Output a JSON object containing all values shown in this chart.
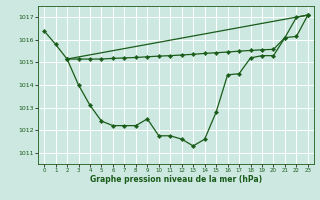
{
  "background_color": "#cce8e0",
  "grid_color": "#ffffff",
  "line_color": "#1a5c1a",
  "xlabel": "Graphe pression niveau de la mer (hPa)",
  "ylim": [
    1010.5,
    1017.5
  ],
  "xlim": [
    -0.5,
    23.5
  ],
  "yticks": [
    1011,
    1012,
    1013,
    1014,
    1015,
    1016,
    1017
  ],
  "xticks": [
    0,
    1,
    2,
    3,
    4,
    5,
    6,
    7,
    8,
    9,
    10,
    11,
    12,
    13,
    14,
    15,
    16,
    17,
    18,
    19,
    20,
    21,
    22,
    23
  ],
  "series1_x": [
    0,
    1,
    2,
    3,
    4,
    5,
    6,
    7,
    8,
    9,
    10,
    11,
    12,
    13,
    14,
    15,
    16,
    17,
    18,
    19,
    20,
    21,
    22,
    23
  ],
  "series1_y": [
    1016.4,
    1015.8,
    1015.15,
    1014.0,
    1013.1,
    1012.4,
    1012.2,
    1012.2,
    1012.2,
    1012.5,
    1011.75,
    1011.75,
    1011.6,
    1011.3,
    1011.6,
    1012.8,
    1014.45,
    1014.5,
    1015.2,
    1015.3,
    1015.3,
    1016.1,
    1017.0,
    1017.1
  ],
  "series2_x": [
    2,
    3,
    4,
    5,
    6,
    7,
    8,
    9,
    10,
    11,
    12,
    13,
    14,
    15,
    16,
    17,
    18,
    19,
    20,
    21,
    22,
    23
  ],
  "series2_y": [
    1015.15,
    1015.15,
    1015.15,
    1015.15,
    1015.18,
    1015.2,
    1015.22,
    1015.25,
    1015.28,
    1015.3,
    1015.33,
    1015.36,
    1015.4,
    1015.43,
    1015.46,
    1015.5,
    1015.53,
    1015.56,
    1015.58,
    1016.1,
    1016.15,
    1017.1
  ],
  "series3_x": [
    2,
    23
  ],
  "series3_y": [
    1015.15,
    1017.1
  ]
}
